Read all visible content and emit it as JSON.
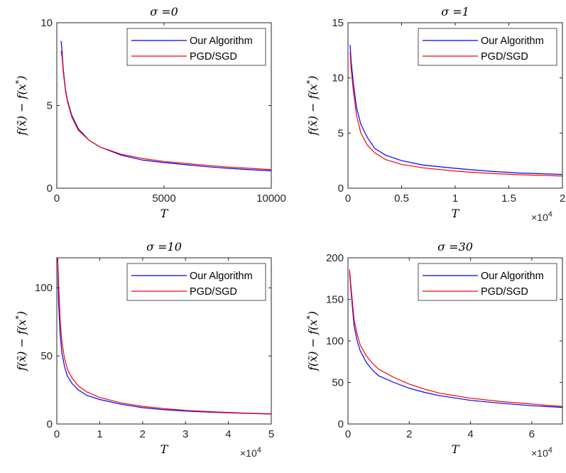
{
  "chart_data": [
    {
      "type": "line",
      "title": "σ =0",
      "xlabel": "T",
      "ylabel": "f(x̄) − f(x*)",
      "xlim": [
        0,
        10000
      ],
      "ylim": [
        0,
        10
      ],
      "xticks": [
        0,
        5000,
        10000
      ],
      "xtick_labels": [
        "0",
        "5000",
        "10000"
      ],
      "yticks": [
        0,
        5,
        10
      ],
      "ytick_labels": [
        "0",
        "5",
        "10"
      ],
      "x_multiplier": "",
      "legend_position": "top-right",
      "series": [
        {
          "name": "Our Algorithm",
          "color": "#0000ff",
          "x": [
            200,
            250,
            300,
            400,
            500,
            700,
            1000,
            1500,
            2000,
            3000,
            4000,
            5000,
            6000,
            7000,
            8000,
            9000,
            10000
          ],
          "y": [
            8.9,
            8.2,
            7.2,
            6.0,
            5.3,
            4.4,
            3.6,
            2.9,
            2.5,
            2.0,
            1.7,
            1.55,
            1.42,
            1.3,
            1.2,
            1.12,
            1.05
          ]
        },
        {
          "name": "PGD/SGD",
          "color": "#ff0000",
          "x": [
            200,
            250,
            300,
            400,
            500,
            700,
            1000,
            1500,
            2000,
            3000,
            4000,
            5000,
            6000,
            7000,
            8000,
            9000,
            10000
          ],
          "y": [
            8.3,
            7.9,
            7.0,
            5.9,
            5.2,
            4.3,
            3.5,
            2.9,
            2.5,
            2.05,
            1.8,
            1.62,
            1.5,
            1.38,
            1.28,
            1.2,
            1.12
          ]
        }
      ]
    },
    {
      "type": "line",
      "title": "σ =1",
      "xlabel": "T",
      "ylabel": "f(x̄) − f(x*)",
      "xlim": [
        0,
        2
      ],
      "ylim": [
        0,
        15
      ],
      "xticks": [
        0,
        0.5,
        1,
        1.5,
        2
      ],
      "xtick_labels": [
        "0",
        "0.5",
        "1",
        "1.5",
        "2"
      ],
      "yticks": [
        0,
        5,
        10,
        15
      ],
      "ytick_labels": [
        "0",
        "5",
        "10",
        "15"
      ],
      "x_multiplier": "×10",
      "x_multiplier_exp": "4",
      "legend_position": "top-right",
      "series": [
        {
          "name": "Our Algorithm",
          "color": "#0000ff",
          "x": [
            0.02,
            0.03,
            0.05,
            0.08,
            0.12,
            0.18,
            0.25,
            0.35,
            0.5,
            0.7,
            1.0,
            1.3,
            1.6,
            2.0
          ],
          "y": [
            13.0,
            11.5,
            9.5,
            7.3,
            5.8,
            4.6,
            3.6,
            3.0,
            2.5,
            2.1,
            1.8,
            1.55,
            1.38,
            1.25
          ]
        },
        {
          "name": "PGD/SGD",
          "color": "#ff0000",
          "x": [
            0.02,
            0.03,
            0.05,
            0.08,
            0.12,
            0.18,
            0.25,
            0.35,
            0.5,
            0.7,
            1.0,
            1.3,
            1.6,
            2.0
          ],
          "y": [
            12.3,
            10.8,
            8.8,
            6.6,
            5.0,
            3.9,
            3.2,
            2.6,
            2.15,
            1.85,
            1.55,
            1.35,
            1.22,
            1.1
          ]
        }
      ]
    },
    {
      "type": "line",
      "title": "σ =10",
      "xlabel": "T",
      "ylabel": "f(x̄) − f(x*)",
      "xlim": [
        0,
        5
      ],
      "ylim": [
        0,
        122
      ],
      "xticks": [
        0,
        1,
        2,
        3,
        4,
        5
      ],
      "xtick_labels": [
        "0",
        "1",
        "2",
        "3",
        "4",
        "5"
      ],
      "yticks": [
        0,
        50,
        100
      ],
      "ytick_labels": [
        "0",
        "50",
        "100"
      ],
      "x_multiplier": "×10",
      "x_multiplier_exp": "4",
      "legend_position": "top-right",
      "series": [
        {
          "name": "Our Algorithm",
          "color": "#0000ff",
          "x": [
            0.02,
            0.04,
            0.08,
            0.12,
            0.18,
            0.25,
            0.35,
            0.5,
            0.7,
            1.0,
            1.5,
            2.0,
            2.5,
            3.0,
            3.5,
            4.0,
            4.5,
            5.0
          ],
          "y": [
            122,
            90,
            65,
            52,
            42,
            35,
            30,
            25,
            21,
            18,
            14.5,
            12,
            10.5,
            9.5,
            8.8,
            8.2,
            7.7,
            7.3
          ]
        },
        {
          "name": "PGD/SGD",
          "color": "#ff0000",
          "x": [
            0.02,
            0.04,
            0.08,
            0.12,
            0.18,
            0.25,
            0.35,
            0.5,
            0.7,
            1.0,
            1.5,
            2.0,
            2.5,
            3.0,
            3.5,
            4.0,
            4.5,
            5.0
          ],
          "y": [
            122,
            105,
            75,
            60,
            48,
            40,
            34,
            28,
            23.5,
            19.5,
            15.5,
            13,
            11.3,
            10,
            9.2,
            8.5,
            7.9,
            7.5
          ]
        }
      ]
    },
    {
      "type": "line",
      "title": "σ =30",
      "xlabel": "T",
      "ylabel": "f(x̄) − f(x*)",
      "xlim": [
        0,
        7
      ],
      "ylim": [
        0,
        200
      ],
      "xticks": [
        0,
        2,
        4,
        6
      ],
      "xtick_labels": [
        "0",
        "2",
        "4",
        "6"
      ],
      "yticks": [
        0,
        50,
        100,
        150,
        200
      ],
      "ytick_labels": [
        "0",
        "50",
        "100",
        "150",
        "200"
      ],
      "x_multiplier": "×10",
      "x_multiplier_exp": "4",
      "legend_position": "top-right",
      "series": [
        {
          "name": "Our Algorithm",
          "color": "#0000ff",
          "x": [
            0.05,
            0.1,
            0.15,
            0.2,
            0.3,
            0.4,
            0.6,
            0.8,
            1.0,
            1.5,
            2.0,
            2.5,
            3.0,
            4.0,
            5.0,
            6.0,
            7.0
          ],
          "y": [
            182,
            160,
            138,
            118,
            100,
            88,
            74,
            65,
            58,
            50,
            43,
            38,
            34,
            28.5,
            25,
            22,
            20
          ]
        },
        {
          "name": "PGD/SGD",
          "color": "#ff0000",
          "x": [
            0.05,
            0.1,
            0.15,
            0.2,
            0.3,
            0.4,
            0.6,
            0.8,
            1.0,
            1.5,
            2.0,
            2.5,
            3.0,
            4.0,
            5.0,
            6.0,
            7.0
          ],
          "y": [
            186,
            165,
            145,
            125,
            108,
            95,
            82,
            73,
            66,
            56,
            48,
            42,
            37,
            31,
            27,
            24,
            21
          ]
        }
      ]
    }
  ]
}
